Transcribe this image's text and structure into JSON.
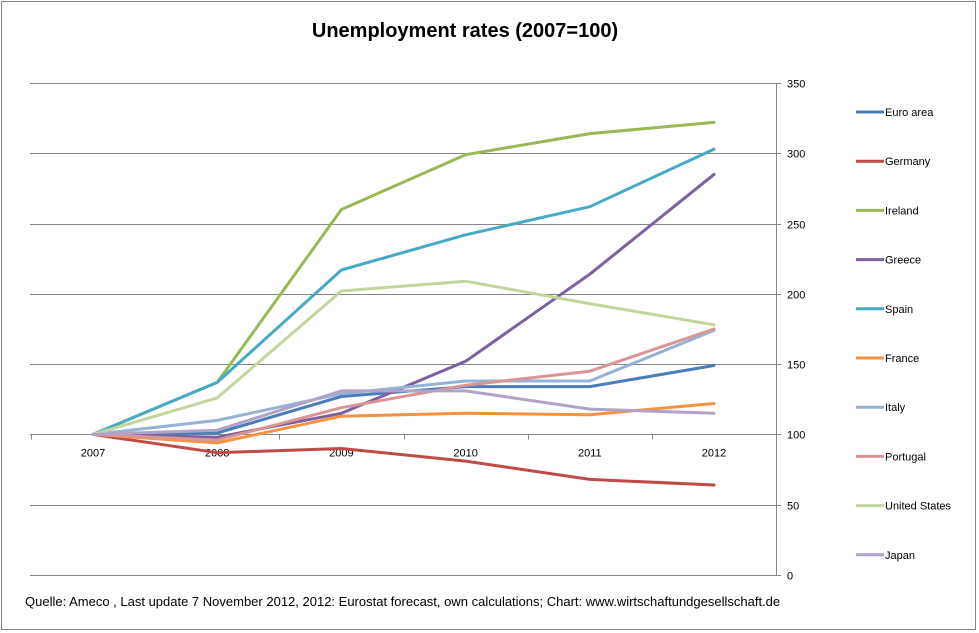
{
  "chart_data": {
    "type": "line",
    "title": "Unemployment rates (2007=100)",
    "xlabel": "",
    "ylabel": "",
    "x": [
      "2007",
      "2008",
      "2009",
      "2010",
      "2011",
      "2012"
    ],
    "ylim": [
      0,
      350
    ],
    "yticks": [
      "0",
      "50",
      "100",
      "150",
      "200",
      "250",
      "300",
      "350"
    ],
    "y_axis_position": "right",
    "x_axis_crosses_at": 100,
    "grid": true,
    "legend_position": "right",
    "series": [
      {
        "name": "Euro area",
        "color": "#4a7ebb",
        "values": [
          100,
          101,
          127,
          134,
          134,
          149
        ]
      },
      {
        "name": "Germany",
        "color": "#be4b48",
        "values": [
          100,
          87,
          90,
          81,
          68,
          64
        ]
      },
      {
        "name": "Ireland",
        "color": "#98b954",
        "values": [
          100,
          137,
          260,
          299,
          314,
          322
        ]
      },
      {
        "name": "Greece",
        "color": "#7d60a0",
        "values": [
          100,
          98,
          115,
          152,
          214,
          285
        ]
      },
      {
        "name": "Spain",
        "color": "#46aac5",
        "values": [
          100,
          137,
          217,
          242,
          262,
          303
        ]
      },
      {
        "name": "France",
        "color": "#f69240",
        "values": [
          100,
          94,
          113,
          115,
          114,
          122
        ]
      },
      {
        "name": "Italy",
        "color": "#95b3d7",
        "values": [
          100,
          110,
          129,
          138,
          138,
          174
        ]
      },
      {
        "name": "Portugal",
        "color": "#d99694",
        "values": [
          100,
          96,
          119,
          135,
          145,
          175
        ]
      },
      {
        "name": "United States",
        "color": "#c3d69b",
        "values": [
          100,
          126,
          202,
          209,
          193,
          178
        ]
      },
      {
        "name": "Japan",
        "color": "#b3a2c7",
        "values": [
          100,
          103,
          131,
          131,
          118,
          115
        ]
      }
    ],
    "footer": "Quelle: Ameco , Last update 7 November 2012, 2012:  Eurostat forecast, own calculations; Chart: www.wirtschaftundgesellschaft.de"
  }
}
